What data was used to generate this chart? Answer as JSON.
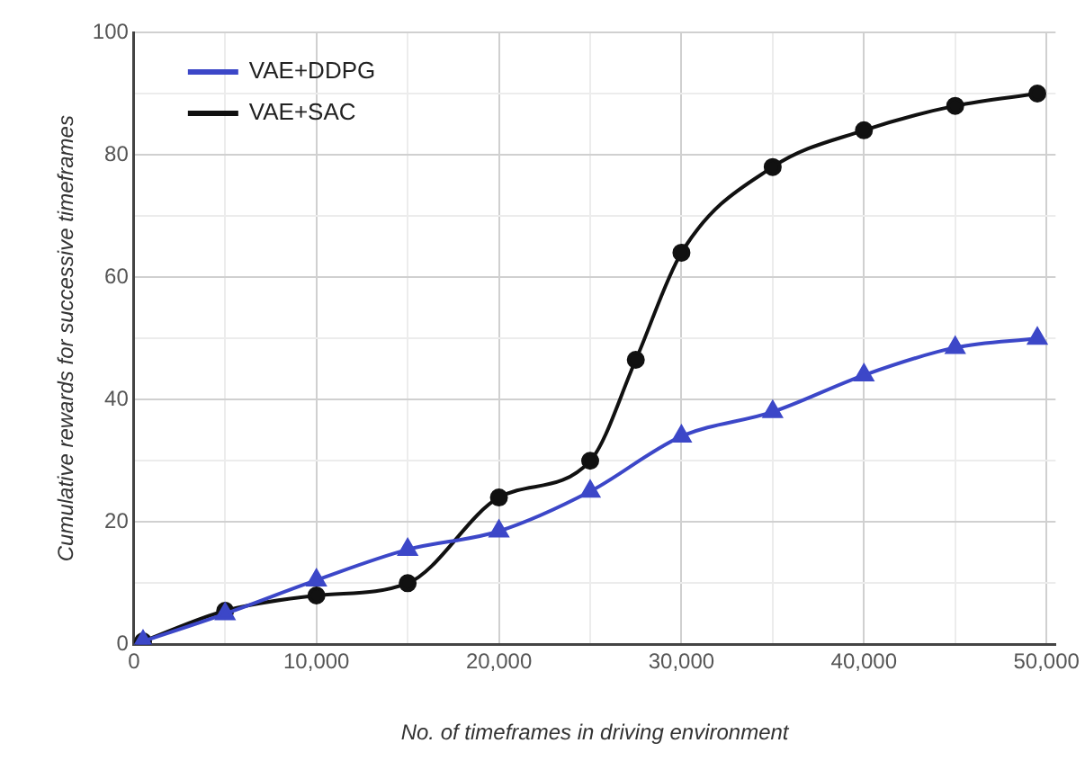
{
  "chart_data": {
    "type": "line",
    "xlabel": "No. of timeframes in driving environment",
    "ylabel": "Cumulative rewards for successive timeframes",
    "xlim": [
      0,
      50500
    ],
    "ylim": [
      0,
      100
    ],
    "xticks": [
      0,
      {
        "value": 5000,
        "label": null
      },
      {
        "value": 10000,
        "label": "10,000"
      },
      {
        "value": 15000,
        "label": null
      },
      {
        "value": 20000,
        "label": "20,000"
      },
      {
        "value": 25000,
        "label": null
      },
      {
        "value": 30000,
        "label": "30,000"
      },
      {
        "value": 35000,
        "label": null
      },
      {
        "value": 40000,
        "label": "40,000"
      },
      {
        "value": 45000,
        "label": null
      },
      {
        "value": 50000,
        "label": "50,000"
      }
    ],
    "yticks": [
      0,
      {
        "value": 10,
        "label": null
      },
      20,
      {
        "value": 30,
        "label": null
      },
      40,
      {
        "value": 50,
        "label": null
      },
      60,
      {
        "value": 70,
        "label": null
      },
      80,
      {
        "value": 90,
        "label": null
      },
      100
    ],
    "grid": true,
    "legend": "top left",
    "line_style": "solid",
    "series": [
      {
        "name": "VAE+DDPG",
        "color": "#3c47c8",
        "marker": "triangle",
        "x": [
          500,
          5000,
          10000,
          15000,
          20000,
          25000,
          30000,
          35000,
          40000,
          45000,
          49500
        ],
        "values": [
          0.5,
          5,
          10.5,
          15.5,
          18.5,
          25,
          34,
          38,
          44,
          48.5,
          50
        ]
      },
      {
        "name": "VAE+SAC",
        "color": "#111111",
        "marker": "circle",
        "x": [
          500,
          5000,
          10000,
          15000,
          20000,
          25000,
          27500,
          30000,
          35000,
          40000,
          45000,
          49500
        ],
        "values": [
          0.5,
          5.5,
          8,
          10,
          24,
          30,
          46.5,
          64,
          78,
          84,
          88,
          90
        ]
      }
    ]
  }
}
